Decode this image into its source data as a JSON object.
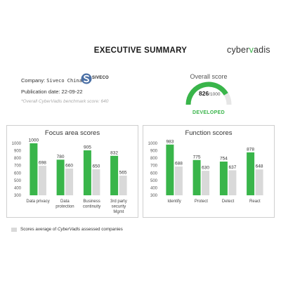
{
  "header": {
    "title": "EXECUTIVE SUMMARY",
    "logo_prefix": "cyber",
    "logo_accent": "v",
    "logo_suffix": "adis"
  },
  "company": {
    "label": "Company: ",
    "name": "Siveco China",
    "logo_text": "SIVECO",
    "publication_label": "Publication date: ",
    "publication_date": "22-09-22",
    "benchmark_text": "*Overall CyberVadis benchmark score: 640"
  },
  "overall": {
    "label": "Overall score",
    "score": "826",
    "max": "/1000",
    "level": "DEVELOPED",
    "fill_fraction": 0.826
  },
  "colors": {
    "green": "#39b54a",
    "grey": "#d9d9d9",
    "gauge_track": "#e6e6e6",
    "siveco_blue": "#4a6fa5"
  },
  "legend": {
    "prefix": "Scores average of ",
    "brand": "CyberVadis",
    "suffix": " assessed companies"
  },
  "chart_data": [
    {
      "type": "bar",
      "title": "Focus area scores",
      "categories": [
        [
          "Data privacy"
        ],
        [
          "Data",
          "protection"
        ],
        [
          "Business",
          "continuity"
        ],
        [
          "3rd party",
          "security",
          "Mgmt"
        ]
      ],
      "series": [
        {
          "values": [
            1000,
            780,
            905,
            832
          ],
          "color": "#39b54a"
        },
        {
          "values": [
            698,
            660,
            650,
            565
          ],
          "color": "#d9d9d9"
        }
      ],
      "yticks": [
        300,
        400,
        500,
        600,
        700,
        800,
        900,
        1000
      ],
      "ylim": [
        300,
        1000
      ]
    },
    {
      "type": "bar",
      "title": "Function scores",
      "categories": [
        [
          "Identify"
        ],
        [
          "Protect"
        ],
        [
          "Detect"
        ],
        [
          "React"
        ]
      ],
      "series": [
        {
          "values": [
            983,
            775,
            754,
            878
          ],
          "color": "#39b54a"
        },
        {
          "values": [
            688,
            630,
            637,
            648
          ],
          "color": "#d9d9d9"
        }
      ],
      "yticks": [
        300,
        400,
        500,
        600,
        700,
        800,
        900,
        1000
      ],
      "ylim": [
        300,
        1000
      ]
    }
  ]
}
